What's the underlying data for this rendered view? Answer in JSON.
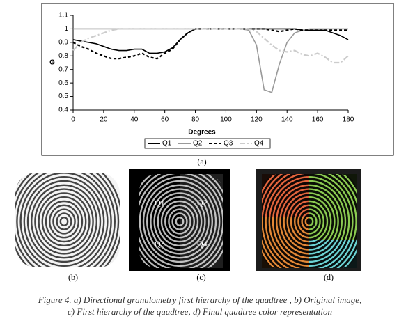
{
  "chart_data": {
    "type": "line",
    "x_label": "Degrees",
    "y_label": "G",
    "x": [
      0,
      5,
      10,
      15,
      20,
      25,
      30,
      35,
      40,
      45,
      50,
      55,
      60,
      65,
      70,
      75,
      80,
      85,
      90,
      95,
      100,
      105,
      110,
      115,
      120,
      125,
      130,
      135,
      140,
      145,
      150,
      155,
      160,
      165,
      170,
      175,
      180
    ],
    "series": [
      {
        "name": "Q1",
        "color": "#000000",
        "dash": "none",
        "values": [
          0.92,
          0.91,
          0.9,
          0.89,
          0.87,
          0.85,
          0.84,
          0.84,
          0.85,
          0.85,
          0.82,
          0.82,
          0.83,
          0.86,
          0.92,
          0.97,
          1,
          1,
          1,
          1,
          1,
          1,
          1,
          1,
          1,
          1,
          1,
          1,
          1,
          1,
          0.99,
          0.99,
          0.99,
          0.99,
          0.97,
          0.95,
          0.92
        ]
      },
      {
        "name": "Q2",
        "color": "#999999",
        "dash": "none",
        "values": [
          1,
          1,
          1,
          1,
          1,
          1,
          1,
          1,
          1,
          1,
          1,
          1,
          1,
          1,
          1,
          1,
          1,
          1,
          1,
          1,
          1,
          1,
          1,
          0.99,
          0.88,
          0.55,
          0.53,
          0.74,
          0.9,
          0.97,
          0.99,
          1,
          1,
          1,
          1,
          1,
          1
        ]
      },
      {
        "name": "Q3",
        "color": "#000000",
        "dash": "4,3",
        "values": [
          0.9,
          0.87,
          0.85,
          0.82,
          0.8,
          0.78,
          0.78,
          0.79,
          0.8,
          0.82,
          0.79,
          0.78,
          0.82,
          0.85,
          0.92,
          0.97,
          1,
          1,
          1,
          1,
          1,
          1,
          1,
          1,
          1,
          1,
          0.99,
          0.98,
          0.99,
          1,
          0.99,
          0.99,
          0.99,
          0.99,
          0.99,
          0.99,
          0.99
        ]
      },
      {
        "name": "Q4",
        "color": "#cccccc",
        "dash": "8,3,2,3",
        "values": [
          0.84,
          0.9,
          0.93,
          0.95,
          0.97,
          0.99,
          1,
          1,
          1,
          1,
          1,
          1,
          1,
          1,
          1,
          1,
          1,
          1,
          1,
          1,
          1,
          1,
          1,
          1,
          0.98,
          0.93,
          0.88,
          0.84,
          0.83,
          0.84,
          0.81,
          0.8,
          0.82,
          0.79,
          0.75,
          0.75,
          0.8
        ]
      }
    ],
    "xlim": [
      0,
      180
    ],
    "xticks": [
      0,
      20,
      40,
      60,
      80,
      100,
      120,
      140,
      160,
      180
    ],
    "ylim": [
      0.4,
      1.1
    ],
    "yticks": [
      0.4,
      0.5,
      0.6,
      0.7,
      0.8,
      0.9,
      1,
      1.1
    ],
    "legend": "bottom"
  },
  "figure": {
    "panel_labels": [
      "(a)",
      "(b)",
      "(c)",
      "(d)"
    ],
    "quadrant_labels": [
      "Q1",
      "Q2",
      "Q3",
      "Q4"
    ],
    "caption": [
      "Figure 4. a) Directional granulometry first hierarchy of the quadtree , b) Original image,",
      "c) First hierarchy of the quadtree, d) Final quadtree color representation"
    ]
  }
}
